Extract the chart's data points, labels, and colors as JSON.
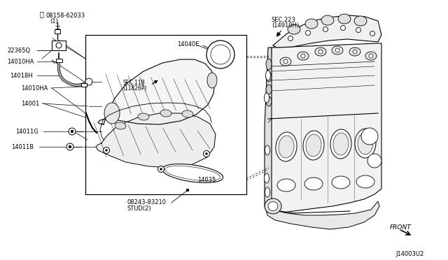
{
  "bg_color": "#ffffff",
  "labels": {
    "bolt_top": "08158-62033\n   (1)",
    "bolt_sym": "Ⓑ",
    "sensor": "22365Q",
    "clamp1": "14010HA",
    "hose": "14018H",
    "clamp2": "14010HA",
    "manifold": "14001",
    "bolt1": "14011G",
    "bolt2": "14011B",
    "stud": "08943-83210\nSTUD(2)",
    "gasket": "14035",
    "throttle": "14040E",
    "sec11b": "SEC.11B\n(11826P)",
    "sec223": "SEC.223\n(14910H)",
    "front": "FRONT",
    "diag_code": "J14003U2"
  }
}
